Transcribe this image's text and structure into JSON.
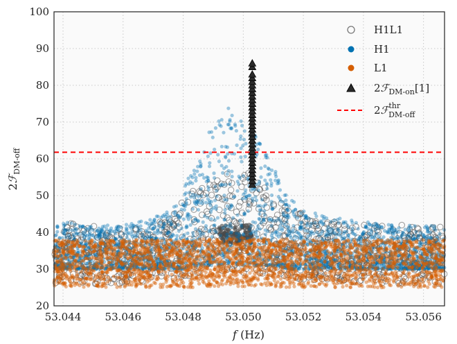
{
  "chart_data": {
    "type": "scatter",
    "title": "",
    "xlabel": "f (Hz)",
    "xlabel_italic": "f",
    "xlabel_unit": "(Hz)",
    "ylabel": "2F_DM-off",
    "xlim": [
      53.0437,
      53.0567
    ],
    "ylim": [
      20,
      100
    ],
    "xticks": [
      53.044,
      53.046,
      53.048,
      53.05,
      53.052,
      53.054,
      53.056
    ],
    "xtick_labels": [
      "53.044",
      "53.046",
      "53.048",
      "53.050",
      "53.052",
      "53.054",
      "53.056"
    ],
    "yticks": [
      20,
      30,
      40,
      50,
      60,
      70,
      80,
      90,
      100
    ],
    "ytick_labels": [
      "20",
      "30",
      "40",
      "50",
      "60",
      "70",
      "80",
      "90",
      "100"
    ],
    "grid": true,
    "legend_position": "top-right",
    "background": "#fafafa",
    "threshold": {
      "name": "2F^thr_DM-off",
      "y": 61.8,
      "color": "#ff0000",
      "style": "dashed"
    },
    "series": [
      {
        "name": "H1L1",
        "marker": "open-circle",
        "color": "#555555",
        "description": "band envelope",
        "x": [
          53.0437,
          53.045,
          53.046,
          53.047,
          53.0475,
          53.048,
          53.0485,
          53.049,
          53.0495,
          53.05,
          53.0505,
          53.051,
          53.0515,
          53.052,
          53.053,
          53.054,
          53.055,
          53.056,
          53.0567
        ],
        "y_min": [
          26,
          26,
          26,
          27,
          27,
          28,
          28,
          29,
          29,
          29,
          29,
          28,
          28,
          27,
          27,
          26,
          26,
          26,
          26
        ],
        "y_max": [
          43,
          42,
          41,
          42,
          44,
          49,
          53,
          55,
          57,
          57,
          55,
          50,
          47,
          45,
          43,
          42,
          42,
          42,
          42
        ]
      },
      {
        "name": "H1",
        "marker": "filled-circle",
        "color": "#0072b2",
        "x": [
          53.0437,
          53.045,
          53.046,
          53.047,
          53.0475,
          53.048,
          53.0485,
          53.049,
          53.0495,
          53.05,
          53.0505,
          53.051,
          53.0515,
          53.052,
          53.053,
          53.054,
          53.055,
          53.056,
          53.0567
        ],
        "y_min": [
          30,
          30,
          30,
          30,
          30,
          30,
          31,
          31,
          31,
          31,
          31,
          31,
          30,
          30,
          30,
          30,
          30,
          30,
          30
        ],
        "y_max": [
          43,
          42,
          42,
          44,
          46,
          52,
          60,
          70,
          74,
          72,
          65,
          58,
          50,
          46,
          44,
          43,
          42,
          42,
          42
        ]
      },
      {
        "name": "L1",
        "marker": "filled-circle",
        "color": "#d55e00",
        "x": [
          53.0437,
          53.048,
          53.05,
          53.052,
          53.0567
        ],
        "y_min": [
          25,
          25,
          25,
          25,
          25
        ],
        "y_max": [
          38,
          38,
          38.5,
          38,
          38
        ]
      },
      {
        "name": "2F_DM-on [1]",
        "marker": "triangle",
        "color": "#111111",
        "x": [
          53.0503,
          53.0503,
          53.0503,
          53.0503,
          53.0503,
          53.0503,
          53.0503,
          53.0503,
          53.0503,
          53.0503,
          53.0503,
          53.0503,
          53.0503,
          53.0503,
          53.0503,
          53.0503,
          53.0503,
          53.0503,
          53.0503,
          53.0503,
          53.0503,
          53.0503,
          53.0503,
          53.0503,
          53.0503,
          53.0503,
          53.0503,
          53.0503,
          53.0503,
          53.0503,
          53.0503,
          53.0503,
          53.0503
        ],
        "y": [
          53,
          54,
          55,
          56,
          57,
          58,
          59,
          60,
          61,
          62,
          63,
          64,
          65,
          66,
          67,
          68,
          69,
          70,
          71,
          72,
          73,
          74,
          75,
          76,
          77,
          78,
          79,
          80,
          81,
          82,
          83,
          85,
          86
        ]
      }
    ]
  }
}
